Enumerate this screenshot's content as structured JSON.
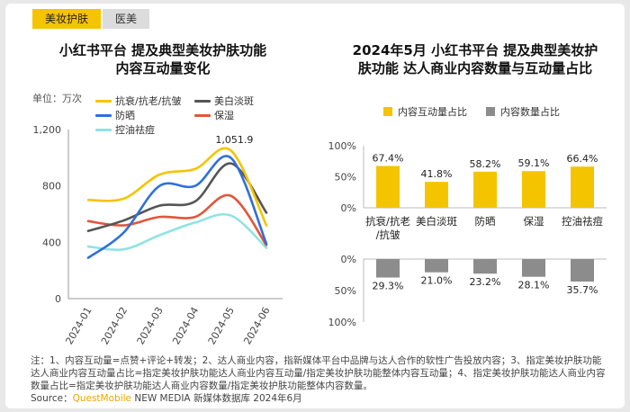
{
  "tabs": [
    {
      "label": "美妆护肤",
      "active": true
    },
    {
      "label": "医美",
      "active": false
    }
  ],
  "left_title": "小红书平台 提及典型美妆护肤功能\n内容互动量变化",
  "right_title": "2024年5月 小红书平台 提及典型美妆护\n肤功能 达人商业内容数量与互动量占比",
  "unit_label": "单位：万次",
  "note": "注：1、内容互动量=点赞+评论+转发；2、达人商业内容，指新媒体平台中品牌与达人合作的软性广告投放内容；3、指定美妆护肤功能达人商业内容互动量占比=指定美妆护肤功能达人商业内容互动量/指定美妆护肤功能整体内容互动量；4、指定美妆护肤功能达人商业内容数量占比=指定美妆护肤功能达人商业内容数量/指定美妆护肤功能整体内容数量。",
  "source_prefix": "Source：",
  "source_brand": "QuestMobile",
  "source_rest": " NEW MEDIA 新媒体数据库 2024年6月",
  "chart_data": [
    {
      "type": "line",
      "x": [
        "2024-01",
        "2024-02",
        "2024-03",
        "2024-04",
        "2024-05",
        "2024-06"
      ],
      "ylim": [
        0,
        1200
      ],
      "yticks": [
        "0",
        "400",
        "800",
        "1,200"
      ],
      "ylabel": "万次",
      "grid": false,
      "legend_position": "top",
      "series": [
        {
          "name": "抗衰/抗老/抗皱",
          "color": "#f5c400",
          "values": [
            700,
            710,
            880,
            920,
            1051.9,
            520
          ]
        },
        {
          "name": "美白淡斑",
          "color": "#555555",
          "values": [
            480,
            555,
            660,
            690,
            960,
            610
          ]
        },
        {
          "name": "防晒",
          "color": "#2f6fdc",
          "values": [
            290,
            470,
            800,
            800,
            1000,
            390
          ]
        },
        {
          "name": "保湿",
          "color": "#e2553a",
          "values": [
            550,
            520,
            580,
            580,
            730,
            380
          ]
        },
        {
          "name": "控油祛痘",
          "color": "#8fe3e3",
          "values": [
            370,
            350,
            450,
            540,
            590,
            360
          ]
        }
      ],
      "annotations": [
        {
          "x": "2024-05",
          "label": "1,051.9"
        }
      ]
    },
    {
      "type": "bar",
      "categories": [
        "抗衰/抗老/抗皱",
        "美白淡斑",
        "防晒",
        "保湿",
        "控油祛痘"
      ],
      "category_labels": [
        "抗衰/抗老\n/抗皱",
        "美白淡斑",
        "防晒",
        "保湿",
        "控油祛痘"
      ],
      "series": [
        {
          "name": "内容互动量占比",
          "color": "#f5c400",
          "values": [
            67.4,
            41.8,
            58.2,
            59.1,
            66.4
          ],
          "labels": [
            "67.4%",
            "41.8%",
            "58.2%",
            "59.1%",
            "66.4%"
          ]
        },
        {
          "name": "内容数量占比",
          "color": "#8c8c8c",
          "values": [
            29.3,
            21.0,
            23.2,
            28.1,
            35.7
          ],
          "labels": [
            "29.3%",
            "21.0%",
            "23.2%",
            "28.1%",
            "35.7%"
          ]
        }
      ],
      "ylim": [
        0,
        100
      ],
      "upper_yticks": [
        "100%",
        "50%",
        "0%"
      ],
      "lower_yticks": [
        "0%",
        "50%",
        "100%"
      ],
      "legend_position": "top"
    }
  ]
}
